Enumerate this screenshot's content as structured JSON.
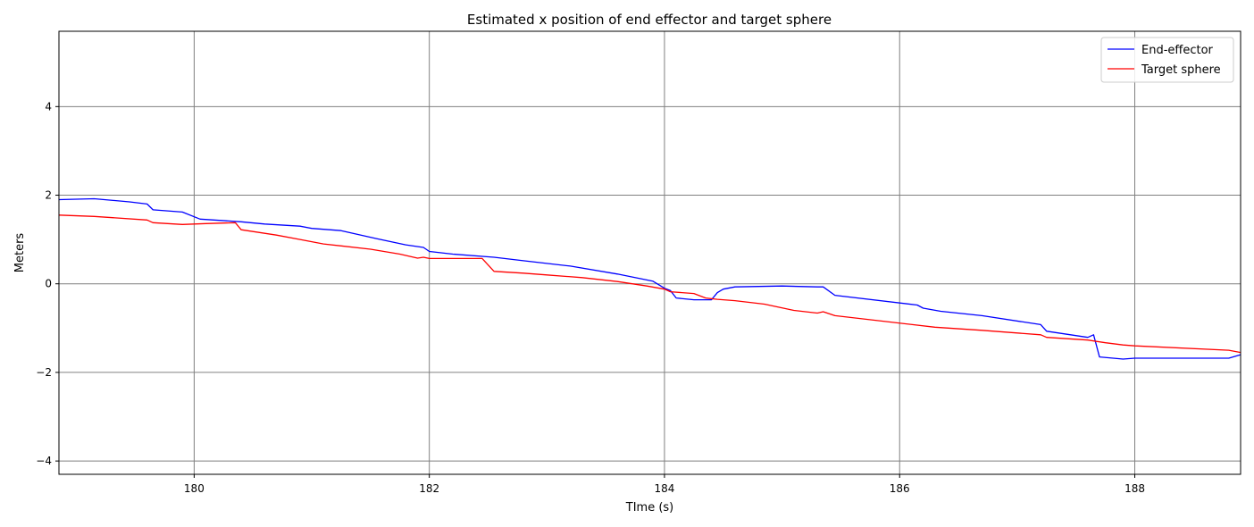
{
  "chart_data": {
    "type": "line",
    "title": "Estimated x position of end effector and target sphere",
    "xlabel": "TIme (s)",
    "ylabel": "Meters",
    "xlim": [
      178.85,
      188.9
    ],
    "ylim": [
      -4.3,
      5.7
    ],
    "xticks": [
      180,
      182,
      184,
      186,
      188
    ],
    "yticks": [
      -4,
      -2,
      0,
      2,
      4
    ],
    "xtick_labels": [
      "180",
      "182",
      "184",
      "186",
      "188"
    ],
    "ytick_labels": [
      "−4",
      "−2",
      "0",
      "2",
      "4"
    ],
    "grid": true,
    "legend_position": "top-right",
    "series": [
      {
        "name": "End-effector",
        "color": "#0000ff",
        "x": [
          178.85,
          179.15,
          179.45,
          179.6,
          179.65,
          179.9,
          180.05,
          180.4,
          180.6,
          180.9,
          181.0,
          181.25,
          181.55,
          181.8,
          181.95,
          182.0,
          182.2,
          182.55,
          182.8,
          183.2,
          183.6,
          183.9,
          184.0,
          184.05,
          184.1,
          184.25,
          184.4,
          184.45,
          184.5,
          184.6,
          185.0,
          185.3,
          185.35,
          185.45,
          186.15,
          186.2,
          186.35,
          186.7,
          187.2,
          187.25,
          187.6,
          187.65,
          187.7,
          187.9,
          188.0,
          188.8,
          188.9
        ],
        "y": [
          1.9,
          1.92,
          1.85,
          1.8,
          1.67,
          1.62,
          1.46,
          1.4,
          1.35,
          1.3,
          1.25,
          1.2,
          1.02,
          0.88,
          0.82,
          0.73,
          0.67,
          0.6,
          0.52,
          0.4,
          0.22,
          0.06,
          -0.1,
          -0.15,
          -0.32,
          -0.36,
          -0.36,
          -0.2,
          -0.12,
          -0.07,
          -0.05,
          -0.07,
          -0.07,
          -0.26,
          -0.48,
          -0.55,
          -0.62,
          -0.72,
          -0.92,
          -1.07,
          -1.21,
          -1.15,
          -1.65,
          -1.7,
          -1.68,
          -1.68,
          -1.6
        ]
      },
      {
        "name": "Target sphere",
        "color": "#ff0000",
        "x": [
          178.85,
          179.15,
          179.6,
          179.65,
          179.9,
          180.1,
          180.35,
          180.4,
          180.7,
          180.9,
          181.1,
          181.5,
          181.75,
          181.9,
          181.95,
          182.0,
          182.1,
          182.45,
          182.55,
          182.8,
          183.0,
          183.3,
          183.6,
          183.85,
          184.0,
          184.05,
          184.25,
          184.35,
          184.45,
          184.6,
          184.85,
          185.1,
          185.2,
          185.3,
          185.35,
          185.45,
          186.3,
          186.7,
          187.2,
          187.25,
          187.6,
          187.75,
          187.9,
          188.0,
          188.8,
          188.9
        ],
        "y": [
          1.55,
          1.52,
          1.44,
          1.38,
          1.34,
          1.36,
          1.38,
          1.22,
          1.1,
          1.0,
          0.9,
          0.78,
          0.67,
          0.58,
          0.6,
          0.57,
          0.57,
          0.57,
          0.28,
          0.24,
          0.2,
          0.14,
          0.05,
          -0.05,
          -0.12,
          -0.18,
          -0.22,
          -0.32,
          -0.35,
          -0.38,
          -0.46,
          -0.6,
          -0.63,
          -0.66,
          -0.63,
          -0.72,
          -0.98,
          -1.05,
          -1.15,
          -1.21,
          -1.27,
          -1.33,
          -1.38,
          -1.4,
          -1.5,
          -1.55
        ]
      }
    ]
  }
}
